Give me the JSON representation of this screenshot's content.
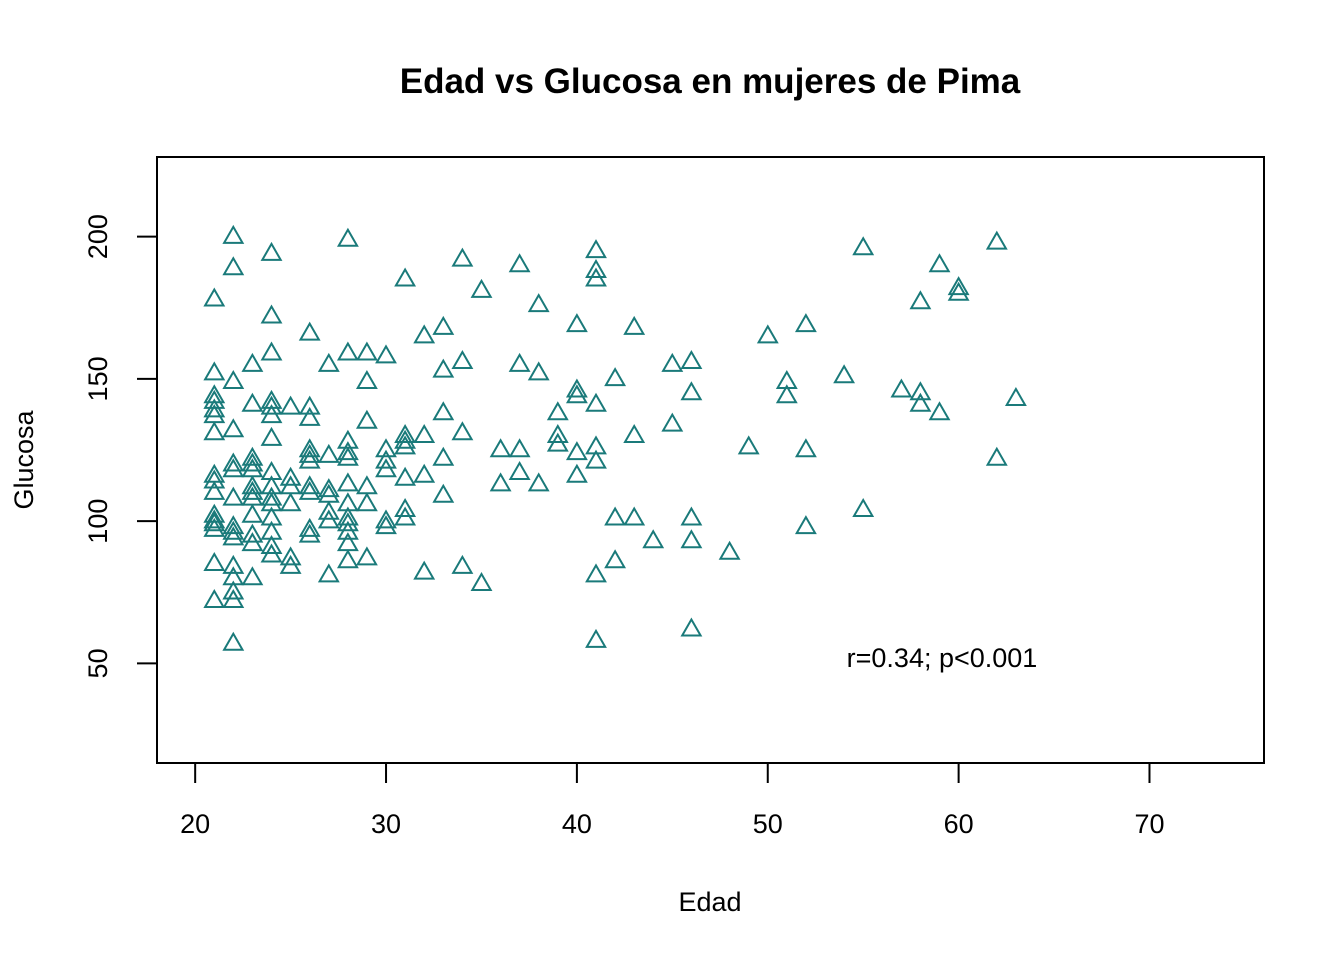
{
  "chart_data": {
    "type": "scatter",
    "title": "Edad vs Glucosa en mujeres de Pima",
    "xlabel": "Edad",
    "ylabel": "Glucosa",
    "xlim": [
      18,
      76
    ],
    "ylim": [
      15,
      228
    ],
    "x_ticks": [
      20,
      30,
      40,
      50,
      60,
      70
    ],
    "y_ticks": [
      50,
      100,
      150,
      200
    ],
    "marker": "open-triangle",
    "point_color": "#1a7a7a",
    "grid": false,
    "annotation": "r=0.34; p<0.001",
    "points": [
      [
        21,
        178
      ],
      [
        21,
        152
      ],
      [
        21,
        144
      ],
      [
        21,
        142
      ],
      [
        21,
        139
      ],
      [
        21,
        137
      ],
      [
        21,
        131
      ],
      [
        21,
        116
      ],
      [
        21,
        114
      ],
      [
        21,
        110
      ],
      [
        21,
        102
      ],
      [
        21,
        100
      ],
      [
        21,
        99
      ],
      [
        21,
        97
      ],
      [
        21,
        85
      ],
      [
        21,
        72
      ],
      [
        22,
        200
      ],
      [
        22,
        189
      ],
      [
        22,
        149
      ],
      [
        22,
        132
      ],
      [
        22,
        120
      ],
      [
        22,
        118
      ],
      [
        22,
        108
      ],
      [
        22,
        98
      ],
      [
        22,
        96
      ],
      [
        22,
        94
      ],
      [
        22,
        84
      ],
      [
        22,
        80
      ],
      [
        22,
        75
      ],
      [
        22,
        72
      ],
      [
        22,
        57
      ],
      [
        23,
        155
      ],
      [
        23,
        141
      ],
      [
        23,
        122
      ],
      [
        23,
        120
      ],
      [
        23,
        118
      ],
      [
        23,
        112
      ],
      [
        23,
        110
      ],
      [
        23,
        108
      ],
      [
        23,
        102
      ],
      [
        23,
        95
      ],
      [
        23,
        92
      ],
      [
        23,
        80
      ],
      [
        24,
        194
      ],
      [
        24,
        172
      ],
      [
        24,
        159
      ],
      [
        24,
        142
      ],
      [
        24,
        140
      ],
      [
        24,
        137
      ],
      [
        24,
        129
      ],
      [
        24,
        117
      ],
      [
        24,
        112
      ],
      [
        24,
        108
      ],
      [
        24,
        106
      ],
      [
        24,
        101
      ],
      [
        24,
        96
      ],
      [
        24,
        91
      ],
      [
        24,
        88
      ],
      [
        25,
        140
      ],
      [
        25,
        115
      ],
      [
        25,
        112
      ],
      [
        25,
        106
      ],
      [
        25,
        87
      ],
      [
        25,
        84
      ],
      [
        26,
        166
      ],
      [
        26,
        140
      ],
      [
        26,
        136
      ],
      [
        26,
        125
      ],
      [
        26,
        123
      ],
      [
        26,
        121
      ],
      [
        26,
        112
      ],
      [
        26,
        110
      ],
      [
        26,
        97
      ],
      [
        26,
        95
      ],
      [
        27,
        155
      ],
      [
        27,
        123
      ],
      [
        27,
        111
      ],
      [
        27,
        109
      ],
      [
        27,
        103
      ],
      [
        27,
        100
      ],
      [
        27,
        81
      ],
      [
        28,
        199
      ],
      [
        28,
        159
      ],
      [
        28,
        128
      ],
      [
        28,
        124
      ],
      [
        28,
        122
      ],
      [
        28,
        113
      ],
      [
        28,
        106
      ],
      [
        28,
        101
      ],
      [
        28,
        99
      ],
      [
        28,
        96
      ],
      [
        28,
        92
      ],
      [
        28,
        86
      ],
      [
        29,
        159
      ],
      [
        29,
        149
      ],
      [
        29,
        135
      ],
      [
        29,
        112
      ],
      [
        29,
        106
      ],
      [
        29,
        87
      ],
      [
        30,
        158
      ],
      [
        30,
        125
      ],
      [
        30,
        121
      ],
      [
        30,
        118
      ],
      [
        30,
        100
      ],
      [
        30,
        98
      ],
      [
        31,
        185
      ],
      [
        31,
        130
      ],
      [
        31,
        128
      ],
      [
        31,
        126
      ],
      [
        31,
        115
      ],
      [
        31,
        104
      ],
      [
        31,
        101
      ],
      [
        32,
        165
      ],
      [
        32,
        130
      ],
      [
        32,
        116
      ],
      [
        32,
        82
      ],
      [
        33,
        168
      ],
      [
        33,
        153
      ],
      [
        33,
        138
      ],
      [
        33,
        122
      ],
      [
        33,
        109
      ],
      [
        34,
        192
      ],
      [
        34,
        156
      ],
      [
        34,
        131
      ],
      [
        34,
        84
      ],
      [
        35,
        181
      ],
      [
        35,
        78
      ],
      [
        36,
        125
      ],
      [
        36,
        113
      ],
      [
        37,
        190
      ],
      [
        37,
        155
      ],
      [
        37,
        125
      ],
      [
        37,
        117
      ],
      [
        38,
        176
      ],
      [
        38,
        152
      ],
      [
        38,
        113
      ],
      [
        39,
        138
      ],
      [
        39,
        130
      ],
      [
        39,
        127
      ],
      [
        40,
        169
      ],
      [
        40,
        146
      ],
      [
        40,
        144
      ],
      [
        40,
        124
      ],
      [
        40,
        116
      ],
      [
        41,
        195
      ],
      [
        41,
        188
      ],
      [
        41,
        185
      ],
      [
        41,
        141
      ],
      [
        41,
        126
      ],
      [
        41,
        121
      ],
      [
        41,
        81
      ],
      [
        41,
        58
      ],
      [
        42,
        150
      ],
      [
        42,
        101
      ],
      [
        42,
        86
      ],
      [
        43,
        168
      ],
      [
        43,
        130
      ],
      [
        43,
        101
      ],
      [
        44,
        93
      ],
      [
        45,
        155
      ],
      [
        45,
        134
      ],
      [
        46,
        156
      ],
      [
        46,
        145
      ],
      [
        46,
        101
      ],
      [
        46,
        93
      ],
      [
        46,
        62
      ],
      [
        48,
        89
      ],
      [
        49,
        126
      ],
      [
        50,
        165
      ],
      [
        51,
        149
      ],
      [
        51,
        144
      ],
      [
        52,
        169
      ],
      [
        52,
        125
      ],
      [
        52,
        98
      ],
      [
        54,
        151
      ],
      [
        55,
        196
      ],
      [
        55,
        104
      ],
      [
        57,
        146
      ],
      [
        58,
        177
      ],
      [
        58,
        145
      ],
      [
        58,
        141
      ],
      [
        59,
        190
      ],
      [
        59,
        138
      ],
      [
        60,
        182
      ],
      [
        60,
        180
      ],
      [
        62,
        198
      ],
      [
        62,
        122
      ],
      [
        63,
        143
      ]
    ]
  }
}
